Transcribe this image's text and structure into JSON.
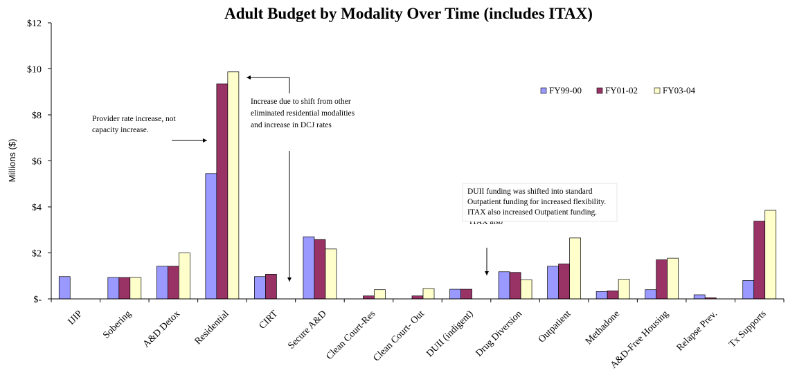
{
  "chart_data": {
    "type": "bar",
    "title": "Adult Budget by Modality Over Time (includes ITAX)",
    "ylabel": "Millions ($)",
    "ylim": [
      0,
      12
    ],
    "y_ticks": [
      "$-",
      "$2",
      "$4",
      "$6",
      "$8",
      "$10",
      "$12"
    ],
    "legend_position": "top-right",
    "grid": false,
    "categories": [
      "IJIP",
      "Sobering",
      "A&D Detox",
      "Residential",
      "CIRT",
      "Secure A&D",
      "Clean Court-Res",
      "Clean Court- Out",
      "DUII (indigent)",
      "Drug Diversion",
      "Outpatient",
      "Methadone",
      "A&D-Free Housing",
      "Relapse Prev.",
      "Tx Supports"
    ],
    "series": [
      {
        "name": "FY99-00",
        "color": "#9999ff",
        "values": [
          0.97,
          0.93,
          1.42,
          5.45,
          0.97,
          2.7,
          0,
          0,
          0.42,
          1.18,
          1.42,
          0.32,
          0.4,
          0.18,
          0.8
        ]
      },
      {
        "name": "FY01-02",
        "color": "#993366",
        "values": [
          0,
          0.93,
          1.42,
          9.35,
          1.07,
          2.58,
          0.13,
          0.13,
          0.42,
          1.15,
          1.52,
          0.35,
          1.7,
          0.05,
          3.38
        ]
      },
      {
        "name": "FY03-04",
        "color": "#ffffcc",
        "values": [
          0,
          0.93,
          2.0,
          9.87,
          0,
          2.17,
          0.4,
          0.45,
          0,
          0.83,
          2.65,
          0.85,
          1.77,
          0,
          3.85
        ]
      }
    ],
    "annotations": [
      {
        "name": "provider-rate",
        "lines": [
          "Provider rate increase, not",
          "capacity increase."
        ]
      },
      {
        "name": "residential-shift",
        "lines": [
          "Increase due to shift from other",
          "eliminated residential modalities",
          "and increase in DCJ rates"
        ]
      },
      {
        "name": "duii-shift",
        "lines": [
          "DUII funding was shifted into standard",
          "Outpatient funding for increased flexibility.",
          "ITAX also increased Outpatient funding."
        ],
        "partial": "ITAX also"
      }
    ]
  }
}
